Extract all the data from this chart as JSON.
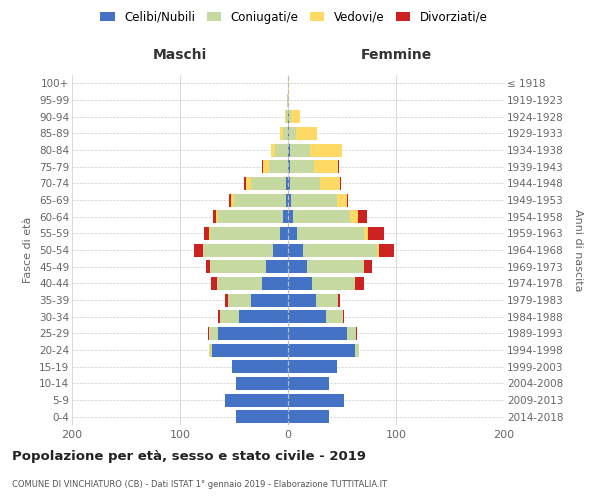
{
  "age_groups": [
    "0-4",
    "5-9",
    "10-14",
    "15-19",
    "20-24",
    "25-29",
    "30-34",
    "35-39",
    "40-44",
    "45-49",
    "50-54",
    "55-59",
    "60-64",
    "65-69",
    "70-74",
    "75-79",
    "80-84",
    "85-89",
    "90-94",
    "95-99",
    "100+"
  ],
  "birth_years": [
    "2014-2018",
    "2009-2013",
    "2004-2008",
    "1999-2003",
    "1994-1998",
    "1989-1993",
    "1984-1988",
    "1979-1983",
    "1974-1978",
    "1969-1973",
    "1964-1968",
    "1959-1963",
    "1954-1958",
    "1949-1953",
    "1944-1948",
    "1939-1943",
    "1934-1938",
    "1929-1933",
    "1924-1928",
    "1919-1923",
    "≤ 1918"
  ],
  "males": {
    "celibe": [
      48,
      58,
      48,
      52,
      70,
      65,
      45,
      34,
      24,
      20,
      14,
      7,
      5,
      2,
      2,
      0,
      0,
      0,
      0,
      0,
      0
    ],
    "coniugato": [
      0,
      0,
      0,
      0,
      2,
      8,
      18,
      22,
      42,
      52,
      65,
      65,
      60,
      48,
      32,
      18,
      12,
      5,
      2,
      1,
      0
    ],
    "vedovo": [
      0,
      0,
      0,
      0,
      1,
      0,
      0,
      0,
      0,
      0,
      0,
      1,
      2,
      3,
      5,
      5,
      4,
      2,
      1,
      0,
      0
    ],
    "divorziato": [
      0,
      0,
      0,
      0,
      0,
      1,
      2,
      2,
      5,
      4,
      8,
      5,
      2,
      2,
      2,
      1,
      0,
      0,
      0,
      0,
      0
    ]
  },
  "females": {
    "nubile": [
      38,
      52,
      38,
      45,
      62,
      55,
      35,
      26,
      22,
      18,
      14,
      8,
      5,
      3,
      2,
      2,
      2,
      1,
      1,
      0,
      0
    ],
    "coniugata": [
      0,
      0,
      0,
      0,
      4,
      8,
      16,
      20,
      40,
      52,
      68,
      62,
      52,
      42,
      28,
      22,
      18,
      6,
      2,
      0,
      0
    ],
    "vedova": [
      0,
      0,
      0,
      0,
      0,
      0,
      0,
      0,
      0,
      0,
      2,
      4,
      8,
      10,
      18,
      22,
      30,
      20,
      8,
      1,
      1
    ],
    "divorziata": [
      0,
      0,
      0,
      0,
      0,
      1,
      1,
      2,
      8,
      8,
      14,
      15,
      8,
      1,
      1,
      1,
      0,
      0,
      0,
      0,
      0
    ]
  },
  "colors": {
    "celibe": "#4472c4",
    "coniugato": "#c5d9a0",
    "vedovo": "#ffd966",
    "divorziato": "#cc2222"
  },
  "legend_labels": [
    "Celibi/Nubili",
    "Coniugati/e",
    "Vedovi/e",
    "Divorziati/e"
  ],
  "legend_colors": [
    "#4472c4",
    "#c5d9a0",
    "#ffd966",
    "#cc2222"
  ],
  "title": "Popolazione per età, sesso e stato civile - 2019",
  "subtitle": "COMUNE DI VINCHIATURO (CB) - Dati ISTAT 1° gennaio 2019 - Elaborazione TUTTITALIA.IT",
  "ylabel_left": "Fasce di età",
  "ylabel_right": "Anni di nascita",
  "header_maschi": "Maschi",
  "header_femmine": "Femmine",
  "xlim": 200,
  "bg_color": "#ffffff",
  "grid_color": "#cccccc",
  "bar_height": 0.78
}
